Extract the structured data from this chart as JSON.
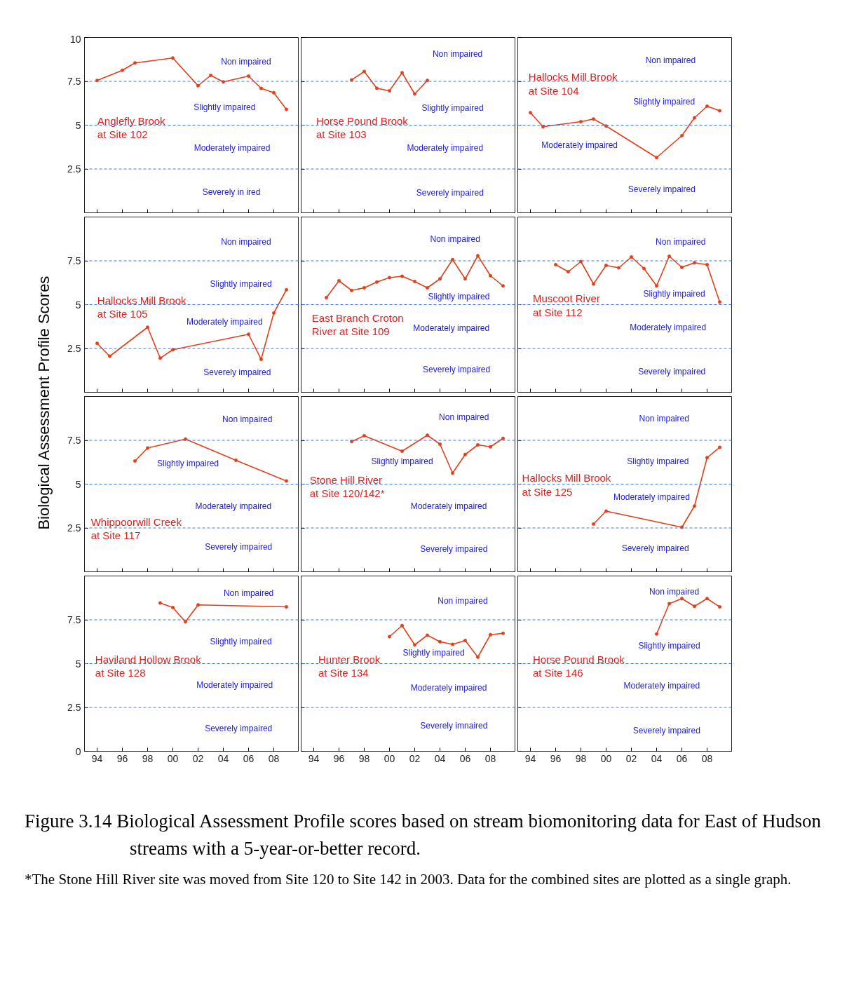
{
  "chart_data": [
    {
      "type": "line",
      "title": "Anglefly Brook\nat Site 102",
      "ylabel": "Biological Assessment Profile Scores",
      "color": "#e0401c",
      "marker": "circle",
      "x": [
        1994,
        1996,
        1997,
        2000,
        2002,
        2003,
        2004,
        2006,
        2007,
        2008,
        2009
      ],
      "values": [
        7.55,
        8.13,
        8.55,
        8.83,
        7.25,
        7.84,
        7.47,
        7.8,
        7.1,
        6.85,
        5.9
      ],
      "xlim": [
        1993,
        2010
      ],
      "ylim": [
        0,
        10
      ],
      "xticks": [
        {
          "value": 1994,
          "label": null
        },
        {
          "value": 1996,
          "label": null
        },
        {
          "value": 1998,
          "label": null
        },
        {
          "value": 2000,
          "label": null
        },
        {
          "value": 2002,
          "label": null
        },
        {
          "value": 2004,
          "label": null
        },
        {
          "value": 2006,
          "label": null
        },
        {
          "value": 2008,
          "label": null
        }
      ],
      "yticks": [
        2.5,
        5,
        7.5,
        10
      ],
      "tick_labels": "y",
      "ref_lines": [
        {
          "axis": "y",
          "value": 7.5,
          "color": "#3c78e0",
          "line_style": "dashed"
        },
        {
          "axis": "y",
          "value": 5,
          "color": "#3c78e0",
          "line_style": "dashed"
        },
        {
          "axis": "y",
          "value": 2.5,
          "color": "#3c78e0",
          "line_style": "dashed"
        }
      ],
      "annotations": [
        "Non impaired",
        "Slightly impaired",
        "Moderately impaired",
        "Severely in      ired",
        "Figure 3.14  Biological Assessment Profile scores based on stream biomonitoring data for East of Hudson streams with a 5-year-or-better record.",
        "*The Stone Hill River site was moved from Site 120 to Site 142 in 2003. Data for the combined sites are plotted as a single graph."
      ]
    },
    {
      "type": "line",
      "title": "Horse Pound Brook\nat Site 103",
      "color": "#e0401c",
      "marker": "circle",
      "x": [
        1997,
        1998,
        1999,
        2000,
        2001,
        2002,
        2003
      ],
      "values": [
        7.58,
        8.06,
        7.1,
        6.96,
        7.99,
        6.78,
        7.55
      ],
      "xlim": [
        1993,
        2010
      ],
      "ylim": [
        0,
        10
      ],
      "xticks": [
        {
          "value": 1994,
          "label": null
        },
        {
          "value": 1996,
          "label": null
        },
        {
          "value": 1998,
          "label": null
        },
        {
          "value": 2000,
          "label": null
        },
        {
          "value": 2002,
          "label": null
        },
        {
          "value": 2004,
          "label": null
        },
        {
          "value": 2006,
          "label": null
        },
        {
          "value": 2008,
          "label": null
        }
      ],
      "yticks": [
        {
          "value": 2.5,
          "label": null
        },
        {
          "value": 5,
          "label": null
        },
        {
          "value": 7.5,
          "label": null
        },
        {
          "value": 10,
          "label": null
        }
      ],
      "tick_labels": false,
      "ref_lines": [
        {
          "axis": "y",
          "value": 7.5,
          "color": "#3c78e0",
          "line_style": "dashed"
        },
        {
          "axis": "y",
          "value": 5,
          "color": "#3c78e0",
          "line_style": "dashed"
        },
        {
          "axis": "y",
          "value": 2.5,
          "color": "#3c78e0",
          "line_style": "dashed"
        }
      ],
      "annotations": [
        "Non impaired",
        "Slightly impaired",
        "Moderately impaired",
        "Severely impaired"
      ]
    },
    {
      "type": "line",
      "title": "Hallocks Mill Brook\nat Site 104",
      "color": "#e0401c",
      "marker": "circle",
      "x": [
        1994,
        1995,
        1998,
        1999,
        2000,
        2004,
        2006,
        2007,
        2008,
        2009
      ],
      "values": [
        5.71,
        4.91,
        5.2,
        5.35,
        4.95,
        3.15,
        4.4,
        5.42,
        6.08,
        5.82
      ],
      "xlim": [
        1993,
        2010
      ],
      "ylim": [
        0,
        10
      ],
      "xticks": [
        {
          "value": 1994,
          "label": null
        },
        {
          "value": 1996,
          "label": null
        },
        {
          "value": 1998,
          "label": null
        },
        {
          "value": 2000,
          "label": null
        },
        {
          "value": 2002,
          "label": null
        },
        {
          "value": 2004,
          "label": null
        },
        {
          "value": 2006,
          "label": null
        },
        {
          "value": 2008,
          "label": null
        }
      ],
      "yticks": [
        {
          "value": 2.5,
          "label": null
        },
        {
          "value": 5,
          "label": null
        },
        {
          "value": 7.5,
          "label": null
        },
        {
          "value": 10,
          "label": null
        }
      ],
      "tick_labels": false,
      "ref_lines": [
        {
          "axis": "y",
          "value": 7.5,
          "color": "#3c78e0",
          "line_style": "dashed"
        },
        {
          "axis": "y",
          "value": 5,
          "color": "#3c78e0",
          "line_style": "dashed"
        },
        {
          "axis": "y",
          "value": 2.5,
          "color": "#3c78e0",
          "line_style": "dashed"
        }
      ],
      "annotations": [
        "Non impaired",
        "Slightly impaired",
        "Moderately impaired",
        "Severely impaired"
      ]
    },
    {
      "type": "line",
      "title": "Hallocks Mill Brook\nat Site 105",
      "color": "#e0401c",
      "marker": "circle",
      "x": [
        1994,
        1995,
        1998,
        1999,
        2000,
        2006,
        2007,
        2008,
        2009
      ],
      "values": [
        2.79,
        2.06,
        3.71,
        1.95,
        2.43,
        3.31,
        1.88,
        4.52,
        5.85
      ],
      "xlim": [
        1993,
        2010
      ],
      "ylim": [
        0,
        10
      ],
      "xticks": [
        {
          "value": 1994,
          "label": null
        },
        {
          "value": 1996,
          "label": null
        },
        {
          "value": 1998,
          "label": null
        },
        {
          "value": 2000,
          "label": null
        },
        {
          "value": 2002,
          "label": null
        },
        {
          "value": 2004,
          "label": null
        },
        {
          "value": 2006,
          "label": null
        },
        {
          "value": 2008,
          "label": null
        }
      ],
      "yticks": [
        2.5,
        5,
        7.5
      ],
      "tick_labels": "y",
      "ref_lines": [
        {
          "axis": "y",
          "value": 7.5,
          "color": "#3c78e0",
          "line_style": "dashed"
        },
        {
          "axis": "y",
          "value": 5,
          "color": "#3c78e0",
          "line_style": "dashed"
        },
        {
          "axis": "y",
          "value": 2.5,
          "color": "#3c78e0",
          "line_style": "dashed"
        }
      ],
      "annotations": [
        "Non impaired",
        "Slightly impaired",
        "Moderately impaired",
        "Severely impaired"
      ]
    },
    {
      "type": "line",
      "title": "East Branch Croton\nRiver at Site 109",
      "color": "#e0401c",
      "marker": "circle",
      "x": [
        1995,
        1996,
        1997,
        1998,
        1999,
        2000,
        2001,
        2002,
        2003,
        2004,
        2005,
        2006,
        2007,
        2008,
        2009
      ],
      "values": [
        5.4,
        6.36,
        5.81,
        5.96,
        6.29,
        6.54,
        6.62,
        6.32,
        5.96,
        6.47,
        7.57,
        6.47,
        7.79,
        6.65,
        6.07
      ],
      "xlim": [
        1993,
        2010
      ],
      "ylim": [
        0,
        10
      ],
      "xticks": [
        {
          "value": 1994,
          "label": null
        },
        {
          "value": 1996,
          "label": null
        },
        {
          "value": 1998,
          "label": null
        },
        {
          "value": 2000,
          "label": null
        },
        {
          "value": 2002,
          "label": null
        },
        {
          "value": 2004,
          "label": null
        },
        {
          "value": 2006,
          "label": null
        },
        {
          "value": 2008,
          "label": null
        }
      ],
      "yticks": [
        {
          "value": 2.5,
          "label": null
        },
        {
          "value": 5,
          "label": null
        },
        {
          "value": 7.5,
          "label": null
        }
      ],
      "tick_labels": false,
      "ref_lines": [
        {
          "axis": "y",
          "value": 7.5,
          "color": "#3c78e0",
          "line_style": "dashed"
        },
        {
          "axis": "y",
          "value": 5,
          "color": "#3c78e0",
          "line_style": "dashed"
        },
        {
          "axis": "y",
          "value": 2.5,
          "color": "#3c78e0",
          "line_style": "dashed"
        }
      ],
      "annotations": [
        "Non impaired",
        "Slightly impaired",
        "Moderately impaired",
        "Severely impaired"
      ]
    },
    {
      "type": "line",
      "title": "Muscoot River\nat Site 112",
      "color": "#e0401c",
      "marker": "circle",
      "x": [
        1996,
        1997,
        1998,
        1999,
        2000,
        2001,
        2002,
        2003,
        2004,
        2005,
        2006,
        2007,
        2008,
        2009
      ],
      "values": [
        7.28,
        6.88,
        7.46,
        6.18,
        7.24,
        7.1,
        7.72,
        7.06,
        6.07,
        7.76,
        7.13,
        7.39,
        7.28,
        5.15
      ],
      "xlim": [
        1993,
        2010
      ],
      "ylim": [
        0,
        10
      ],
      "xticks": [
        {
          "value": 1994,
          "label": null
        },
        {
          "value": 1996,
          "label": null
        },
        {
          "value": 1998,
          "label": null
        },
        {
          "value": 2000,
          "label": null
        },
        {
          "value": 2002,
          "label": null
        },
        {
          "value": 2004,
          "label": null
        },
        {
          "value": 2006,
          "label": null
        },
        {
          "value": 2008,
          "label": null
        }
      ],
      "yticks": [
        {
          "value": 2.5,
          "label": null
        },
        {
          "value": 5,
          "label": null
        },
        {
          "value": 7.5,
          "label": null
        }
      ],
      "tick_labels": false,
      "ref_lines": [
        {
          "axis": "y",
          "value": 7.5,
          "color": "#3c78e0",
          "line_style": "dashed"
        },
        {
          "axis": "y",
          "value": 5,
          "color": "#3c78e0",
          "line_style": "dashed"
        },
        {
          "axis": "y",
          "value": 2.5,
          "color": "#3c78e0",
          "line_style": "dashed"
        }
      ],
      "annotations": [
        "Non impaired",
        "Slightly impaired",
        "Moderately impaired",
        "Severely impaired"
      ]
    },
    {
      "type": "line",
      "title": "Whippoorwill Creek\nat Site 117",
      "color": "#e0401c",
      "marker": "circle",
      "x": [
        1997,
        1998,
        2001,
        2005,
        2009
      ],
      "values": [
        6.32,
        7.06,
        7.57,
        6.36,
        5.18
      ],
      "xlim": [
        1993,
        2010
      ],
      "ylim": [
        0,
        10
      ],
      "xticks": [
        {
          "value": 1994,
          "label": null
        },
        {
          "value": 1996,
          "label": null
        },
        {
          "value": 1998,
          "label": null
        },
        {
          "value": 2000,
          "label": null
        },
        {
          "value": 2002,
          "label": null
        },
        {
          "value": 2004,
          "label": null
        },
        {
          "value": 2006,
          "label": null
        },
        {
          "value": 2008,
          "label": null
        }
      ],
      "yticks": [
        2.5,
        5,
        7.5
      ],
      "tick_labels": "y",
      "ref_lines": [
        {
          "axis": "y",
          "value": 7.5,
          "color": "#3c78e0",
          "line_style": "dashed"
        },
        {
          "axis": "y",
          "value": 5,
          "color": "#3c78e0",
          "line_style": "dashed"
        },
        {
          "axis": "y",
          "value": 2.5,
          "color": "#3c78e0",
          "line_style": "dashed"
        }
      ],
      "annotations": [
        "Non impaired",
        "Slightly impaired",
        "Moderately impaired",
        "Severely impaired"
      ]
    },
    {
      "type": "line",
      "title": "Stone Hill River\nat Site 120/142*",
      "color": "#e0401c",
      "marker": "circle",
      "x": [
        1997,
        1998,
        2001,
        2003,
        2004,
        2005,
        2006,
        2007,
        2008,
        2009
      ],
      "values": [
        7.43,
        7.76,
        6.88,
        7.79,
        7.28,
        5.63,
        6.69,
        7.24,
        7.13,
        7.61
      ],
      "xlim": [
        1993,
        2010
      ],
      "ylim": [
        0,
        10
      ],
      "xticks": [
        {
          "value": 1994,
          "label": null
        },
        {
          "value": 1996,
          "label": null
        },
        {
          "value": 1998,
          "label": null
        },
        {
          "value": 2000,
          "label": null
        },
        {
          "value": 2002,
          "label": null
        },
        {
          "value": 2004,
          "label": null
        },
        {
          "value": 2006,
          "label": null
        },
        {
          "value": 2008,
          "label": null
        }
      ],
      "yticks": [
        {
          "value": 2.5,
          "label": null
        },
        {
          "value": 5,
          "label": null
        },
        {
          "value": 7.5,
          "label": null
        }
      ],
      "tick_labels": false,
      "ref_lines": [
        {
          "axis": "y",
          "value": 7.5,
          "color": "#3c78e0",
          "line_style": "dashed"
        },
        {
          "axis": "y",
          "value": 5,
          "color": "#3c78e0",
          "line_style": "dashed"
        },
        {
          "axis": "y",
          "value": 2.5,
          "color": "#3c78e0",
          "line_style": "dashed"
        }
      ],
      "annotations": [
        "Non impaired",
        "Slightly impaired",
        "Moderately impaired",
        "Severely impaired"
      ]
    },
    {
      "type": "line",
      "title": "Hallocks Mill Brook\nat Site 125",
      "color": "#e0401c",
      "marker": "circle",
      "x": [
        1999,
        2000,
        2006,
        2007,
        2008,
        2009
      ],
      "values": [
        2.72,
        3.46,
        2.54,
        3.75,
        6.51,
        7.1
      ],
      "xlim": [
        1993,
        2010
      ],
      "ylim": [
        0,
        10
      ],
      "xticks": [
        {
          "value": 1994,
          "label": null
        },
        {
          "value": 1996,
          "label": null
        },
        {
          "value": 1998,
          "label": null
        },
        {
          "value": 2000,
          "label": null
        },
        {
          "value": 2002,
          "label": null
        },
        {
          "value": 2004,
          "label": null
        },
        {
          "value": 2006,
          "label": null
        },
        {
          "value": 2008,
          "label": null
        }
      ],
      "yticks": [
        {
          "value": 2.5,
          "label": null
        },
        {
          "value": 5,
          "label": null
        },
        {
          "value": 7.5,
          "label": null
        }
      ],
      "tick_labels": false,
      "ref_lines": [
        {
          "axis": "y",
          "value": 7.5,
          "color": "#3c78e0",
          "line_style": "dashed"
        },
        {
          "axis": "y",
          "value": 5,
          "color": "#3c78e0",
          "line_style": "dashed"
        },
        {
          "axis": "y",
          "value": 2.5,
          "color": "#3c78e0",
          "line_style": "dashed"
        }
      ],
      "annotations": [
        "Non impaired",
        "Slightly impaired",
        "Moderately impaired",
        "Severely impaired"
      ]
    },
    {
      "type": "line",
      "title": "Haviland Hollow Brook\nat Site 128",
      "color": "#e0401c",
      "marker": "circle",
      "x": [
        1999,
        2000,
        2001,
        2002,
        2009
      ],
      "values": [
        8.46,
        8.2,
        7.39,
        8.35,
        8.24
      ],
      "xlim": [
        1993,
        2010
      ],
      "ylim": [
        0,
        10
      ],
      "xticks": [
        {
          "value": 1994,
          "label": "94"
        },
        {
          "value": 1996,
          "label": "96"
        },
        {
          "value": 1998,
          "label": "98"
        },
        {
          "value": 2000,
          "label": "00"
        },
        {
          "value": 2002,
          "label": "02"
        },
        {
          "value": 2004,
          "label": "04"
        },
        {
          "value": 2006,
          "label": "06"
        },
        {
          "value": 2008,
          "label": "08"
        }
      ],
      "yticks": [
        0,
        2.5,
        5,
        7.5
      ],
      "ref_lines": [
        {
          "axis": "y",
          "value": 7.5,
          "color": "#3c78e0",
          "line_style": "dashed"
        },
        {
          "axis": "y",
          "value": 5,
          "color": "#3c78e0",
          "line_style": "dashed"
        },
        {
          "axis": "y",
          "value": 2.5,
          "color": "#3c78e0",
          "line_style": "dashed"
        }
      ],
      "annotations": [
        "Non impaired",
        "Slightly impaired",
        "Moderately impaired",
        "Severely impaired"
      ]
    },
    {
      "type": "line",
      "title": "Hunter Brook\nat Site 134",
      "color": "#e0401c",
      "marker": "circle",
      "x": [
        2000,
        2001,
        2002,
        2003,
        2004,
        2005,
        2006,
        2007,
        2008,
        2009
      ],
      "values": [
        6.54,
        7.17,
        6.07,
        6.62,
        6.25,
        6.1,
        6.32,
        5.37,
        6.65,
        6.73
      ],
      "xlim": [
        1993,
        2010
      ],
      "ylim": [
        0,
        10
      ],
      "xticks": [
        {
          "value": 1994,
          "label": "94"
        },
        {
          "value": 1996,
          "label": "96"
        },
        {
          "value": 1998,
          "label": "98"
        },
        {
          "value": 2000,
          "label": "00"
        },
        {
          "value": 2002,
          "label": "02"
        },
        {
          "value": 2004,
          "label": "04"
        },
        {
          "value": 2006,
          "label": "06"
        },
        {
          "value": 2008,
          "label": "08"
        }
      ],
      "yticks": [
        {
          "value": 0,
          "label": null
        },
        {
          "value": 2.5,
          "label": null
        },
        {
          "value": 5,
          "label": null
        },
        {
          "value": 7.5,
          "label": null
        }
      ],
      "tick_labels": "x",
      "ref_lines": [
        {
          "axis": "y",
          "value": 7.5,
          "color": "#3c78e0",
          "line_style": "dashed"
        },
        {
          "axis": "y",
          "value": 5,
          "color": "#3c78e0",
          "line_style": "dashed"
        },
        {
          "axis": "y",
          "value": 2.5,
          "color": "#3c78e0",
          "line_style": "dashed"
        }
      ],
      "annotations": [
        "Non impaired",
        "Slightly impaired",
        "Moderately impaired",
        "Severely imnaired"
      ]
    },
    {
      "type": "line",
      "title": "Horse Pound Brook\nat Site 146",
      "color": "#e0401c",
      "marker": "circle",
      "x": [
        2004,
        2005,
        2006,
        2007,
        2008,
        2009
      ],
      "values": [
        6.69,
        8.42,
        8.71,
        8.27,
        8.71,
        8.24
      ],
      "xlim": [
        1993,
        2010
      ],
      "ylim": [
        0,
        10
      ],
      "xticks": [
        {
          "value": 1994,
          "label": "94"
        },
        {
          "value": 1996,
          "label": "96"
        },
        {
          "value": 1998,
          "label": "98"
        },
        {
          "value": 2000,
          "label": "00"
        },
        {
          "value": 2002,
          "label": "02"
        },
        {
          "value": 2004,
          "label": "04"
        },
        {
          "value": 2006,
          "label": "06"
        },
        {
          "value": 2008,
          "label": "08"
        }
      ],
      "yticks": [
        {
          "value": 0,
          "label": null
        },
        {
          "value": 2.5,
          "label": null
        },
        {
          "value": 5,
          "label": null
        },
        {
          "value": 7.5,
          "label": null
        }
      ],
      "tick_labels": "x",
      "ref_lines": [
        {
          "axis": "y",
          "value": 7.5,
          "color": "#3c78e0",
          "line_style": "dashed"
        },
        {
          "axis": "y",
          "value": 5,
          "color": "#3c78e0",
          "line_style": "dashed"
        },
        {
          "axis": "y",
          "value": 2.5,
          "color": "#3c78e0",
          "line_style": "dashed"
        }
      ],
      "annotations": [
        "Non impaired",
        "Slightly impaired",
        "Moderately impaired",
        "Severely impaired"
      ]
    }
  ]
}
